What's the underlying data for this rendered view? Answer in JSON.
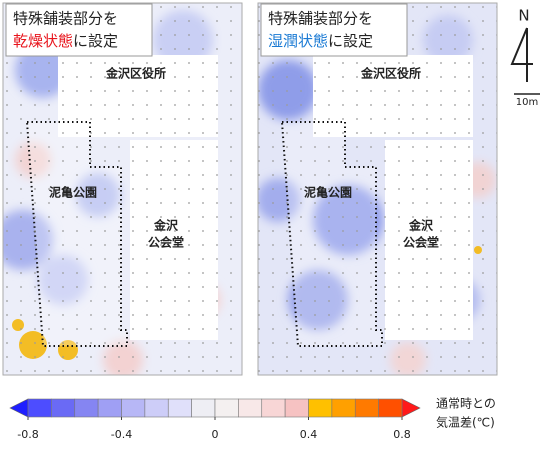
{
  "panels": [
    {
      "title": {
        "prefix": "特殊舗装部分を",
        "highlight": "乾燥状態",
        "suffix": "に設定"
      },
      "highlight_color": "#e8141c",
      "labels": {
        "office": "金沢区役所",
        "park": "泥亀公園",
        "hall_1": "金沢",
        "hall_2": "公会堂"
      }
    },
    {
      "title": {
        "prefix": "特殊舗装部分を",
        "highlight": "湿潤状態",
        "suffix": "に設定"
      },
      "highlight_color": "#1a7ad4",
      "labels": {
        "office": "金沢区役所",
        "park": "泥亀公園",
        "hall_1": "金沢",
        "hall_2": "公会堂"
      }
    }
  ],
  "north": "N",
  "scale": "10m",
  "colorbar": {
    "title_1": "通常時との",
    "title_2": "気温差(℃)",
    "lim": [
      -0.8,
      0.8
    ],
    "ticks": [
      -0.8,
      -0.4,
      0,
      0.4,
      0.8
    ],
    "under_color": "#1f1fff",
    "over_color": "#ff1a1a",
    "colors": [
      "#4d4dff",
      "#6a6af5",
      "#8585f2",
      "#9f9ff4",
      "#b7b7f6",
      "#cdcdf8",
      "#e0e0fa",
      "#eeeef4",
      "#f4f0f0",
      "#f8e8e8",
      "#f8d6d6",
      "#f6c2c2",
      "#ffc000",
      "#ffa000",
      "#ff7a00",
      "#ff5000"
    ]
  }
}
